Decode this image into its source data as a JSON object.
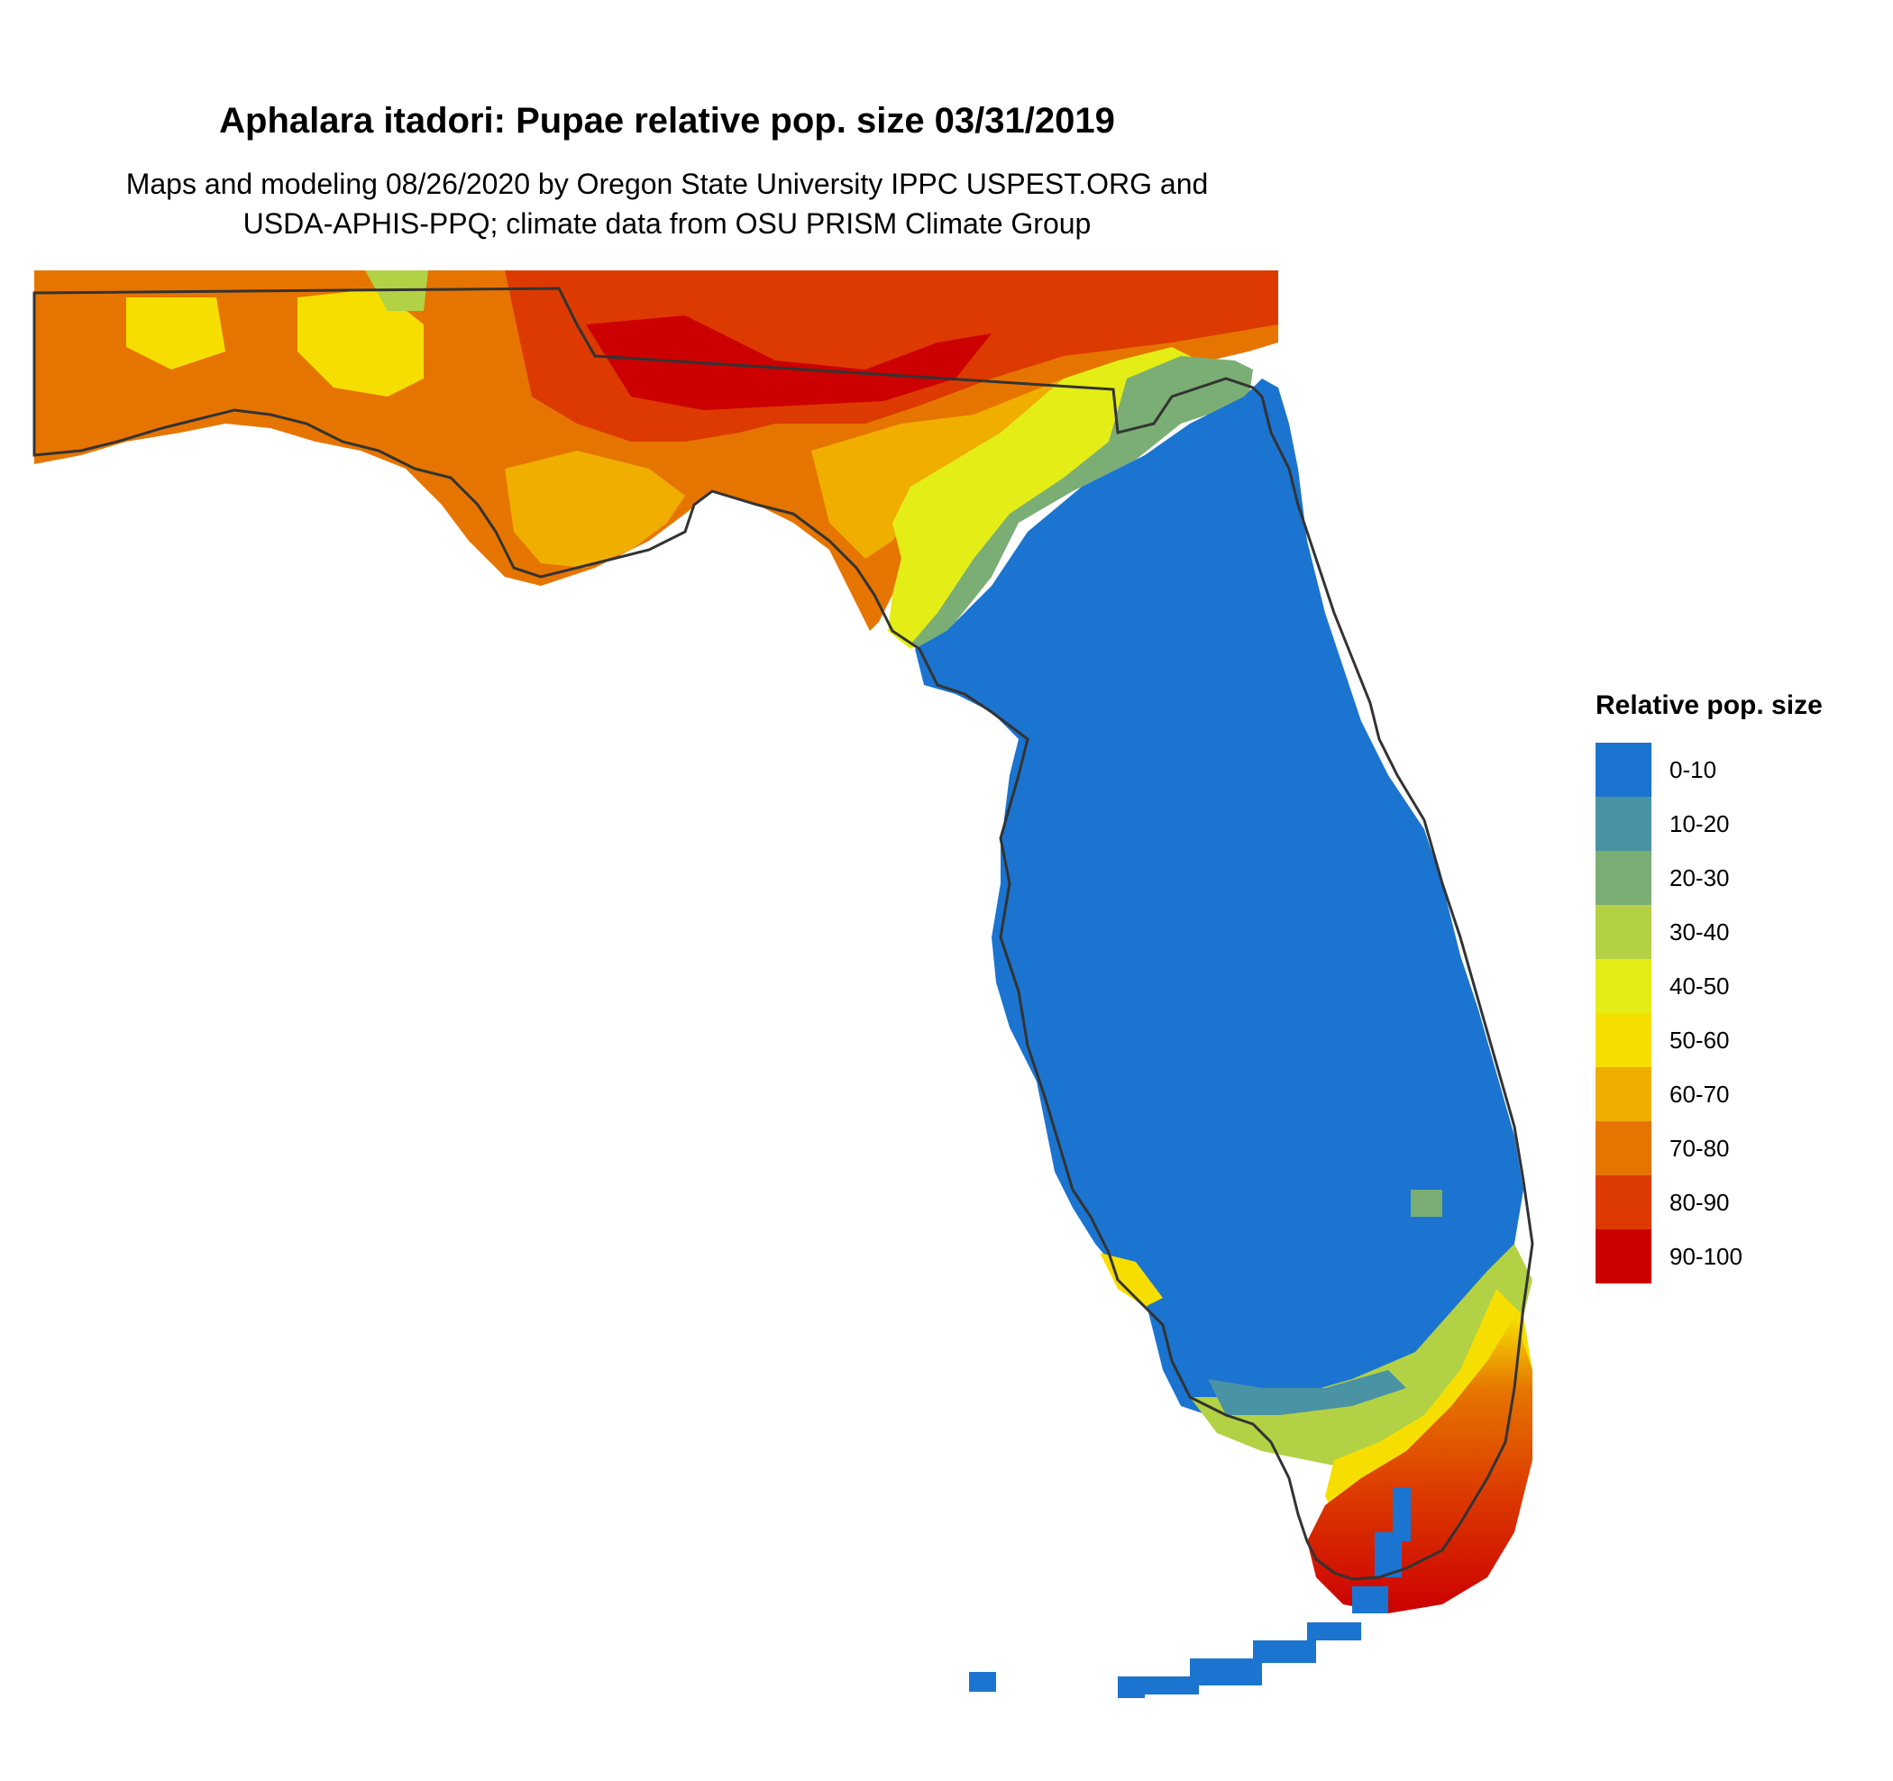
{
  "title": "Aphalara itadori: Pupae relative pop. size 03/31/2019",
  "subtitle_line1": "Maps and modeling 08/26/2020 by Oregon State University IPPC USPEST.ORG and",
  "subtitle_line2": "USDA-APHIS-PPQ; climate data from OSU PRISM Climate Group",
  "legend": {
    "title": "Relative pop. size",
    "items": [
      {
        "label": "0-10",
        "color": "#1B74CF"
      },
      {
        "label": "10-20",
        "color": "#4A93A4"
      },
      {
        "label": "20-30",
        "color": "#7BAE74"
      },
      {
        "label": "30-40",
        "color": "#B2D145"
      },
      {
        "label": "40-50",
        "color": "#E4EE16"
      },
      {
        "label": "50-60",
        "color": "#F6DF00"
      },
      {
        "label": "60-70",
        "color": "#EFAE00"
      },
      {
        "label": "70-80",
        "color": "#E67500"
      },
      {
        "label": "80-90",
        "color": "#DC3A00"
      },
      {
        "label": "90-100",
        "color": "#CC0000"
      }
    ]
  }
}
